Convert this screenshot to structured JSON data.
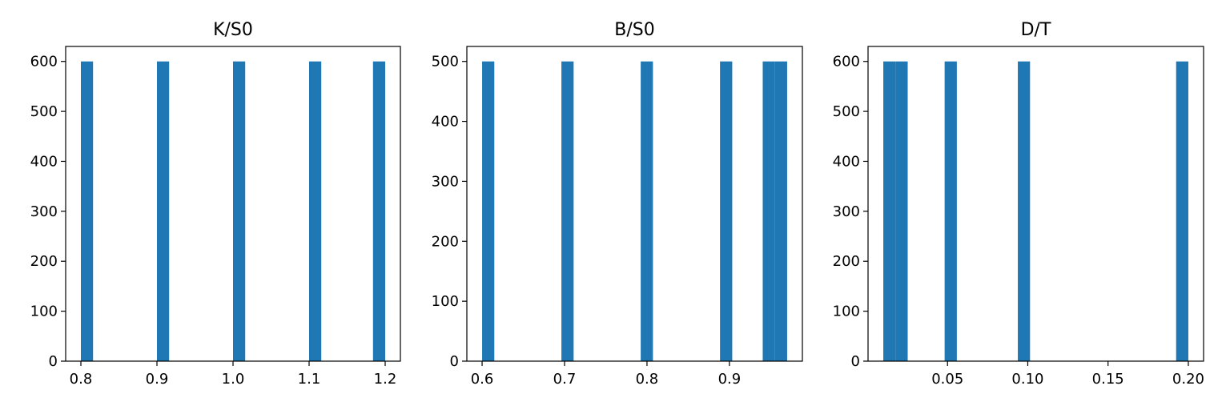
{
  "chart_data": [
    {
      "type": "bar",
      "title": "K/S0",
      "xlabel": "",
      "ylabel": "",
      "bar_color": "#1f77b4",
      "xlim": [
        0.78,
        1.22
      ],
      "ylim": [
        0,
        630
      ],
      "xticks": [
        0.8,
        0.9,
        1.0,
        1.1,
        1.2
      ],
      "xtick_labels": [
        "0.8",
        "0.9",
        "1.0",
        "1.1",
        "1.2"
      ],
      "yticks": [
        0,
        100,
        200,
        300,
        400,
        500,
        600
      ],
      "ytick_labels": [
        "0",
        "100",
        "200",
        "300",
        "400",
        "500",
        "600"
      ],
      "bars": [
        {
          "x0": 0.8,
          "x1": 0.816,
          "value": 600
        },
        {
          "x0": 0.9,
          "x1": 0.916,
          "value": 600
        },
        {
          "x0": 1.0,
          "x1": 1.016,
          "value": 600
        },
        {
          "x0": 1.1,
          "x1": 1.116,
          "value": 600
        },
        {
          "x0": 1.184,
          "x1": 1.2,
          "value": 600
        }
      ]
    },
    {
      "type": "bar",
      "title": "B/S0",
      "xlabel": "",
      "ylabel": "",
      "bar_color": "#1f77b4",
      "xlim": [
        0.5815,
        0.9885
      ],
      "ylim": [
        0,
        525
      ],
      "xticks": [
        0.6,
        0.7,
        0.8,
        0.9
      ],
      "xtick_labels": [
        "0.6",
        "0.7",
        "0.8",
        "0.9"
      ],
      "yticks": [
        0,
        100,
        200,
        300,
        400,
        500
      ],
      "ytick_labels": [
        "0",
        "100",
        "200",
        "300",
        "400",
        "500"
      ],
      "bars": [
        {
          "x0": 0.6,
          "x1": 0.6148,
          "value": 500
        },
        {
          "x0": 0.6962,
          "x1": 0.711,
          "value": 500
        },
        {
          "x0": 0.7924,
          "x1": 0.8072,
          "value": 500
        },
        {
          "x0": 0.8886,
          "x1": 0.9034,
          "value": 500
        },
        {
          "x0": 0.9404,
          "x1": 0.9552,
          "value": 500
        },
        {
          "x0": 0.9552,
          "x1": 0.97,
          "value": 500
        }
      ]
    },
    {
      "type": "bar",
      "title": "D/T",
      "xlabel": "",
      "ylabel": "",
      "bar_color": "#1f77b4",
      "xlim": [
        0.0005,
        0.2095
      ],
      "ylim": [
        0,
        630
      ],
      "xticks": [
        0.05,
        0.1,
        0.15,
        0.2
      ],
      "xtick_labels": [
        "0.05",
        "0.10",
        "0.15",
        "0.20"
      ],
      "yticks": [
        0,
        100,
        200,
        300,
        400,
        500,
        600
      ],
      "ytick_labels": [
        "0",
        "100",
        "200",
        "300",
        "400",
        "500",
        "600"
      ],
      "bars": [
        {
          "x0": 0.01,
          "x1": 0.0176,
          "value": 600
        },
        {
          "x0": 0.0176,
          "x1": 0.0252,
          "value": 600
        },
        {
          "x0": 0.0482,
          "x1": 0.0558,
          "value": 600
        },
        {
          "x0": 0.0938,
          "x1": 0.1014,
          "value": 600
        },
        {
          "x0": 0.1924,
          "x1": 0.2,
          "value": 600
        }
      ]
    }
  ]
}
